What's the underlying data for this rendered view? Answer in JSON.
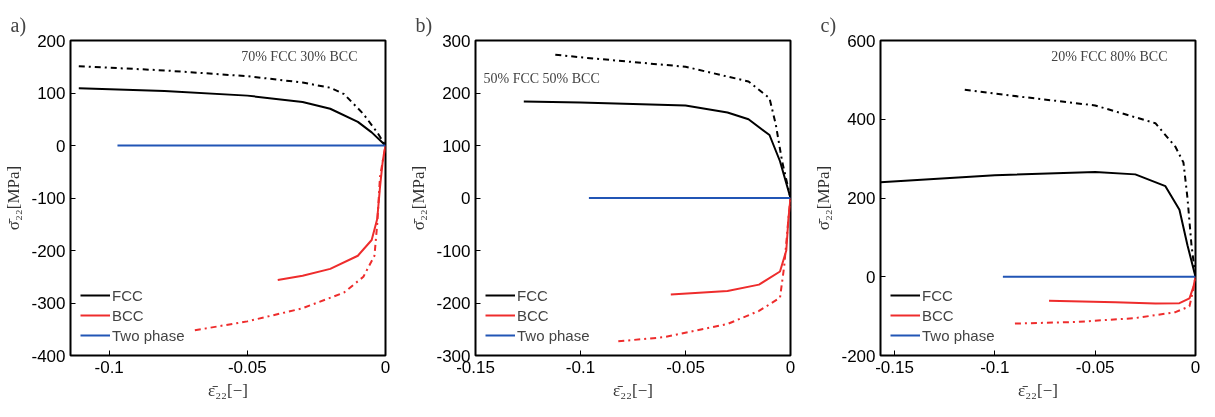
{
  "chart_data": [
    {
      "type": "line",
      "title": "a)",
      "xlabel": "ε̄₂₂[−]",
      "ylabel": "σ̄₂₂[MPa]",
      "annotations": [
        "70% FCC 30% BCC"
      ],
      "xlim": [
        -0.114,
        0
      ],
      "xticks": [
        -0.1,
        -0.05,
        0
      ],
      "ylim": [
        -400,
        200
      ],
      "yticks": [
        -400,
        -300,
        -200,
        -100,
        0,
        100,
        200
      ],
      "grid": false,
      "legend": "bottom left",
      "series": [
        {
          "name": "FCC",
          "color": "#000000",
          "line_style": "solid",
          "x": [
            -0.111,
            -0.08,
            -0.05,
            -0.03,
            -0.02,
            -0.01,
            -0.005,
            0
          ],
          "values": [
            109,
            104,
            95,
            83,
            70,
            45,
            25,
            0
          ]
        },
        {
          "color": "#000000",
          "line_style": "dashed",
          "x": [
            -0.111,
            -0.08,
            -0.05,
            -0.03,
            -0.02,
            -0.015,
            -0.008,
            -0.003,
            0
          ],
          "values": [
            151,
            143,
            132,
            120,
            110,
            98,
            60,
            25,
            0
          ]
        },
        {
          "name": "BCC",
          "color": "#ee2c2c",
          "line_style": "solid",
          "x": [
            -0.039,
            -0.03,
            -0.02,
            -0.01,
            -0.005,
            -0.003,
            -0.002,
            -0.001,
            0
          ],
          "values": [
            -256,
            -248,
            -235,
            -210,
            -180,
            -140,
            -80,
            -30,
            0
          ]
        },
        {
          "color": "#ee2c2c",
          "line_style": "dashed",
          "x": [
            -0.069,
            -0.05,
            -0.03,
            -0.015,
            -0.008,
            -0.004,
            -0.003,
            -0.002,
            0
          ],
          "values": [
            -352,
            -335,
            -310,
            -280,
            -250,
            -210,
            -150,
            -60,
            0
          ]
        },
        {
          "name": "Two phase",
          "color": "#2155b5",
          "line_style": "solid",
          "x": [
            -0.097,
            0
          ],
          "values": [
            0,
            0
          ]
        }
      ]
    },
    {
      "type": "line",
      "title": "b)",
      "xlabel": "ε̄₂₂[−]",
      "ylabel": "σ̄₂₂[MPa]",
      "annotations": [
        "50% FCC 50% BCC"
      ],
      "xlim": [
        -0.15,
        0
      ],
      "xticks": [
        -0.15,
        -0.1,
        -0.05,
        0
      ],
      "ylim": [
        -300,
        300
      ],
      "yticks": [
        -300,
        -200,
        -100,
        0,
        100,
        200,
        300
      ],
      "grid": false,
      "legend": "bottom left",
      "series": [
        {
          "name": "FCC",
          "color": "#000000",
          "line_style": "solid",
          "x": [
            -0.127,
            -0.1,
            -0.05,
            -0.03,
            -0.02,
            -0.01,
            -0.005,
            0
          ],
          "values": [
            184,
            182,
            176,
            163,
            150,
            120,
            70,
            0
          ]
        },
        {
          "color": "#000000",
          "line_style": "dashed",
          "x": [
            -0.112,
            -0.1,
            -0.05,
            -0.02,
            -0.01,
            -0.007,
            -0.004,
            0
          ],
          "values": [
            273,
            268,
            250,
            222,
            190,
            140,
            70,
            0
          ]
        },
        {
          "name": "BCC",
          "color": "#ee2c2c",
          "line_style": "solid",
          "x": [
            -0.057,
            -0.03,
            -0.015,
            -0.005,
            -0.002,
            -0.001,
            0
          ],
          "values": [
            -184,
            -177,
            -165,
            -140,
            -100,
            -40,
            0
          ]
        },
        {
          "color": "#ee2c2c",
          "line_style": "dashed",
          "x": [
            -0.082,
            -0.06,
            -0.03,
            -0.015,
            -0.005,
            -0.003,
            -0.001,
            0
          ],
          "values": [
            -273,
            -265,
            -240,
            -215,
            -190,
            -130,
            -40,
            0
          ]
        },
        {
          "name": "Two phase",
          "color": "#2155b5",
          "line_style": "solid",
          "x": [
            -0.096,
            0
          ],
          "values": [
            0,
            0
          ]
        }
      ]
    },
    {
      "type": "line",
      "title": "c)",
      "xlabel": "ε̄₂₂[−]",
      "ylabel": "σ̄₂₂[MPa]",
      "annotations": [
        "20% FCC 80% BCC"
      ],
      "xlim": [
        -0.157,
        0
      ],
      "xticks": [
        -0.15,
        -0.1,
        -0.05,
        0
      ],
      "ylim": [
        -200,
        600
      ],
      "yticks": [
        -200,
        0,
        200,
        400,
        600
      ],
      "grid": false,
      "legend": "bottom left",
      "series": [
        {
          "name": "FCC",
          "color": "#000000",
          "line_style": "solid",
          "x": [
            -0.157,
            -0.1,
            -0.05,
            -0.03,
            -0.015,
            -0.008,
            -0.004,
            0
          ],
          "values": [
            240,
            258,
            266,
            260,
            230,
            170,
            80,
            0
          ]
        },
        {
          "color": "#000000",
          "line_style": "dashed",
          "x": [
            -0.115,
            -0.1,
            -0.05,
            -0.02,
            -0.01,
            -0.006,
            -0.004,
            -0.002,
            0
          ],
          "values": [
            475,
            465,
            435,
            390,
            330,
            290,
            200,
            80,
            0
          ]
        },
        {
          "name": "BCC",
          "color": "#ee2c2c",
          "line_style": "solid",
          "x": [
            -0.073,
            -0.04,
            -0.02,
            -0.008,
            -0.003,
            -0.001,
            0
          ],
          "values": [
            -61,
            -65,
            -68,
            -67,
            -55,
            -25,
            0
          ]
        },
        {
          "color": "#ee2c2c",
          "line_style": "dashed",
          "x": [
            -0.09,
            -0.06,
            -0.03,
            -0.01,
            -0.003,
            -0.001,
            0
          ],
          "values": [
            -119,
            -115,
            -105,
            -90,
            -75,
            -30,
            0
          ]
        },
        {
          "name": "Two phase",
          "color": "#2155b5",
          "line_style": "solid",
          "x": [
            -0.096,
            0
          ],
          "values": [
            0,
            0
          ]
        }
      ]
    }
  ]
}
